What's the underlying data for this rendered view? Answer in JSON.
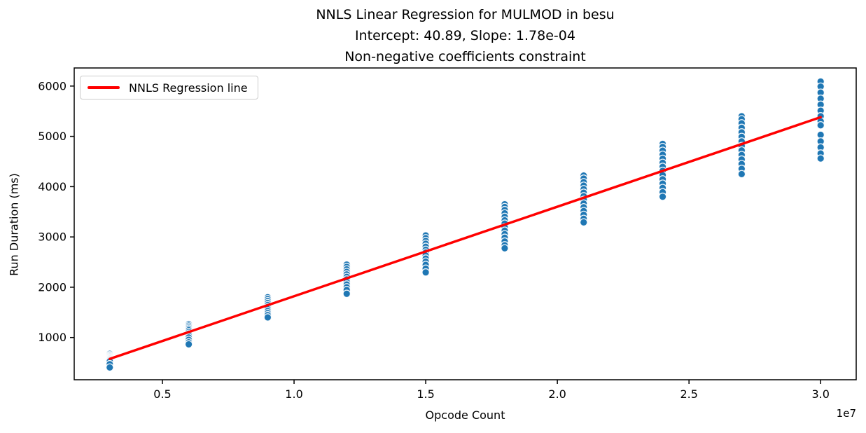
{
  "figure": {
    "title_lines": [
      "NNLS Linear Regression for MULMOD in besu",
      "Intercept: 40.89, Slope: 1.78e-04",
      "Non-negative coefficients constraint"
    ]
  },
  "chart_data": {
    "type": "scatter",
    "title": "NNLS Linear Regression for MULMOD in besu\nIntercept: 40.89, Slope: 1.78e-04\nNon-negative coefficients constraint",
    "xlabel": "Opcode Count",
    "ylabel": "Run Duration (ms)",
    "x_offset_text": "1e7",
    "xlim": [
      1650000,
      31350000
    ],
    "ylim": [
      160,
      6360
    ],
    "grid": false,
    "x_ticks": {
      "values": [
        5000000,
        10000000,
        15000000,
        20000000,
        25000000,
        30000000
      ],
      "labels": [
        "0.5",
        "1.0",
        "1.5",
        "2.0",
        "2.5",
        "3.0"
      ]
    },
    "y_ticks": {
      "values": [
        1000,
        2000,
        3000,
        4000,
        5000,
        6000
      ],
      "labels": [
        "1000",
        "2000",
        "3000",
        "4000",
        "5000",
        "6000"
      ]
    },
    "regression_line": {
      "label": "NNLS Regression line",
      "intercept": 40.89,
      "slope": 0.000178,
      "x_start": 3000000,
      "x_end": 30000000,
      "color": "#ff0000",
      "linewidth": 3.5
    },
    "scatter_style": {
      "color": "#1f77b4",
      "edge_color": "#ffffff",
      "radius": 5.2
    },
    "legend": {
      "position": "upper-left",
      "entries": [
        {
          "label": "NNLS Regression line",
          "color": "#ff0000",
          "type": "line"
        }
      ]
    },
    "clusters": [
      {
        "x": 3000000,
        "y": [
          675,
          650,
          630,
          615,
          600,
          585,
          575,
          560,
          545,
          525,
          470,
          405
        ]
      },
      {
        "x": 6000000,
        "y": [
          1265,
          1235,
          1205,
          1175,
          1145,
          1110,
          1075,
          1040,
          1000,
          955,
          905,
          865
        ]
      },
      {
        "x": 9000000,
        "y": [
          1800,
          1765,
          1725,
          1685,
          1645,
          1605,
          1565,
          1525,
          1485,
          1445,
          1400
        ]
      },
      {
        "x": 12000000,
        "y": [
          2450,
          2405,
          2355,
          2305,
          2255,
          2205,
          2155,
          2105,
          2055,
          2000,
          1945,
          1870
        ]
      },
      {
        "x": 15000000,
        "y": [
          3030,
          2975,
          2920,
          2865,
          2805,
          2745,
          2690,
          2630,
          2570,
          2510,
          2445,
          2370,
          2295
        ]
      },
      {
        "x": 18000000,
        "y": [
          3650,
          3595,
          3535,
          3470,
          3400,
          3330,
          3265,
          3195,
          3125,
          3055,
          2985,
          2910,
          2835,
          2775
        ]
      },
      {
        "x": 21000000,
        "y": [
          4220,
          4160,
          4090,
          4020,
          3950,
          3880,
          3810,
          3740,
          3665,
          3590,
          3515,
          3440,
          3360,
          3290
        ]
      },
      {
        "x": 24000000,
        "y": [
          4850,
          4790,
          4715,
          4635,
          4555,
          4475,
          4395,
          4315,
          4230,
          4145,
          4060,
          3975,
          3890,
          3800
        ]
      },
      {
        "x": 27000000,
        "y": [
          5400,
          5340,
          5260,
          5170,
          5080,
          4990,
          4900,
          4810,
          4720,
          4630,
          4540,
          4450,
          4355,
          4250
        ]
      },
      {
        "x": 30000000,
        "y": [
          6090,
          5990,
          5870,
          5750,
          5630,
          5510,
          5400,
          5300,
          5220,
          5030,
          4900,
          4780,
          4660,
          4560
        ]
      }
    ]
  }
}
